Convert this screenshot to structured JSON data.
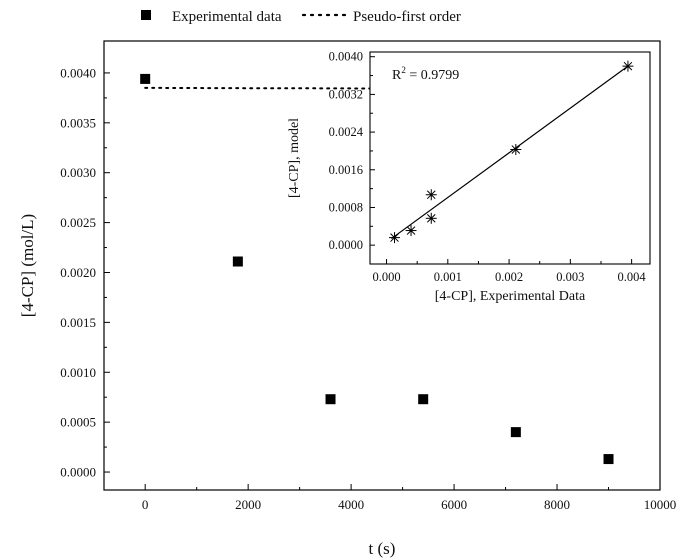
{
  "chart_data": [
    {
      "type": "scatter",
      "xlabel": "t (s)",
      "ylabel": "[4-CP] (mol/L)",
      "xlim": [
        -800,
        10000
      ],
      "ylim": [
        -0.00018,
        0.00432
      ],
      "x_ticks": [
        0,
        2000,
        4000,
        6000,
        8000,
        10000
      ],
      "y_ticks": [
        0.0,
        0.0005,
        0.001,
        0.0015,
        0.002,
        0.0025,
        0.003,
        0.0035,
        0.004
      ],
      "x_tick_labels": [
        "0",
        "2000",
        "4000",
        "6000",
        "8000",
        "10000"
      ],
      "y_tick_labels": [
        "0.0000",
        "0.0005",
        "0.0010",
        "0.0015",
        "0.0020",
        "0.0025",
        "0.0030",
        "0.0035",
        "0.0040"
      ],
      "legend": {
        "position": "top-center",
        "entries": [
          "Experimental data",
          "Pseudo-first order"
        ]
      },
      "series": [
        {
          "name": "Experimental data",
          "marker": "filled-square",
          "color": "#000000",
          "x": [
            0,
            1800,
            3600,
            5400,
            7200,
            9000
          ],
          "y": [
            0.00394,
            0.00211,
            0.00073,
            0.00073,
            0.0004,
            0.00013
          ]
        },
        {
          "name": "Pseudo-first order",
          "style": "dotted-line",
          "color": "#000000",
          "model": {
            "c0": 0.00385,
            "k": 0.000355
          },
          "x": [
            0,
            9000
          ]
        }
      ]
    },
    {
      "type": "scatter",
      "xlabel": "[4-CP], Experimental Data",
      "ylabel": "[4-CP], model",
      "xlim": [
        -0.00027,
        0.0043
      ],
      "ylim": [
        -0.0004,
        0.0041
      ],
      "x_ticks": [
        0.0,
        0.001,
        0.002,
        0.003,
        0.004
      ],
      "y_ticks": [
        0.0,
        0.0008,
        0.0016,
        0.0024,
        0.0032,
        0.004
      ],
      "x_tick_labels": [
        "0.000",
        "0.001",
        "0.002",
        "0.003",
        "0.004"
      ],
      "y_tick_labels": [
        "0.0000",
        "0.0008",
        "0.0016",
        "0.0024",
        "0.0032",
        "0.0040"
      ],
      "annotation": {
        "r2_label": "R",
        "r2_sup": "2",
        "r2_value": " = 0.9799"
      },
      "series": [
        {
          "name": "points",
          "marker": "asterisk",
          "color": "#000000",
          "x": [
            0.00013,
            0.0004,
            0.00073,
            0.00073,
            0.00211,
            0.00394
          ],
          "y": [
            0.00016,
            0.00031,
            0.00057,
            0.00107,
            0.00203,
            0.0038
          ]
        },
        {
          "name": "fit",
          "style": "solid-line",
          "color": "#000000",
          "x": [
            8e-05,
            0.00394
          ],
          "y": [
            0.00014,
            0.0038
          ]
        }
      ]
    }
  ]
}
